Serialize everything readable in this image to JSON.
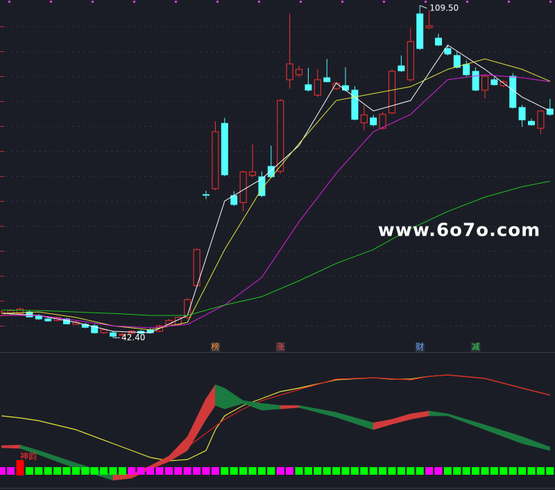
{
  "chart_data": [
    {
      "type": "candlestick",
      "ylim": [
        39.5,
        110.6
      ],
      "open": [
        46.9,
        47.3,
        47.3,
        47.6,
        46.9,
        46.2,
        45.9,
        46.2,
        45.1,
        45.1,
        44.8,
        43.4,
        43.4,
        42.9,
        43.3,
        43.7,
        44.0,
        43.7,
        45.1,
        45.1,
        46.5,
        52.9,
        71.3,
        72.5,
        85.7,
        71.1,
        69.7,
        75.2,
        74.9,
        77.0,
        76.0,
        94.5,
        95.5,
        93.5,
        91.4,
        94.9,
        92.7,
        93.3,
        92.4,
        85.8,
        86.8,
        84.7,
        87.8,
        97.3,
        94.5,
        107.8,
        105.0,
        102.9,
        100.8,
        99.4,
        97.6,
        96.2,
        92.4,
        94.5,
        93.3,
        95.2,
        88.9,
        86.1,
        84.7,
        88.6
      ],
      "high": [
        47.9,
        48.2,
        48.5,
        47.9,
        47.2,
        46.5,
        46.6,
        46.4,
        45.9,
        45.4,
        45.2,
        44.2,
        43.8,
        43.4,
        43.9,
        44.0,
        44.3,
        45.0,
        46.2,
        46.6,
        50.4,
        60.4,
        72.1,
        86.1,
        86.8,
        72.0,
        76.1,
        81.5,
        76.0,
        81.2,
        90.6,
        107.8,
        97.3,
        96.9,
        96.6,
        98.7,
        94.1,
        97.0,
        93.2,
        89.3,
        87.4,
        88.0,
        96.6,
        99.4,
        105.0,
        109.5,
        108.5,
        103.8,
        101.5,
        100.2,
        98.4,
        97.0,
        95.4,
        95.0,
        94.4,
        95.8,
        89.4,
        86.6,
        88.4,
        90.6
      ],
      "low": [
        46.6,
        47.0,
        47.0,
        46.5,
        46.0,
        45.6,
        45.7,
        45.1,
        45.0,
        44.3,
        43.2,
        43.2,
        42.4,
        42.7,
        43.0,
        43.1,
        43.2,
        43.5,
        44.9,
        44.9,
        46.2,
        52.6,
        70.4,
        72.2,
        75.0,
        69.0,
        67.9,
        74.8,
        70.8,
        74.6,
        75.5,
        92.7,
        95.0,
        92.1,
        91.0,
        94.0,
        92.4,
        92.2,
        86.3,
        84.3,
        85.1,
        84.4,
        87.5,
        96.1,
        94.1,
        100.5,
        104.8,
        101.3,
        99.4,
        96.8,
        95.2,
        92.2,
        90.7,
        93.3,
        93.0,
        88.7,
        85.0,
        85.2,
        83.6,
        87.2
      ],
      "close": [
        47.6,
        47.9,
        48.2,
        46.6,
        46.2,
        45.8,
        46.5,
        45.2,
        45.5,
        44.5,
        43.4,
        44.0,
        42.7,
        43.1,
        43.7,
        43.3,
        43.4,
        44.8,
        45.9,
        46.5,
        50.1,
        60.2,
        71.2,
        84.0,
        75.3,
        69.3,
        75.9,
        75.9,
        71.1,
        74.9,
        90.3,
        97.7,
        96.6,
        92.4,
        94.5,
        94.1,
        93.8,
        92.4,
        86.5,
        87.4,
        85.4,
        87.5,
        96.2,
        96.3,
        102.2,
        100.8,
        105.4,
        101.5,
        99.7,
        97.0,
        95.5,
        92.4,
        95.2,
        93.5,
        94.1,
        88.9,
        86.4,
        85.4,
        88.2,
        87.5
      ],
      "up_color": "#ff3232",
      "down_color": "#54ffff",
      "series": [
        {
          "color": "#ffffff",
          "x": [
            0,
            4,
            8,
            12,
            16,
            20,
            24,
            28,
            32,
            36,
            40,
            44,
            48,
            52,
            56,
            59
          ],
          "values": [
            47.3,
            46.9,
            45.5,
            43.7,
            43.4,
            46.9,
            70.0,
            74.5,
            81.2,
            93.8,
            88.2,
            90.3,
            101.5,
            96.6,
            91.0,
            88.2
          ]
        },
        {
          "color": "#e8e83a",
          "x": [
            0,
            4,
            8,
            12,
            16,
            20,
            24,
            28,
            32,
            36,
            40,
            44,
            48,
            52,
            56,
            59
          ],
          "values": [
            47.3,
            47.6,
            46.5,
            44.8,
            44.0,
            45.5,
            60.2,
            72.5,
            81.6,
            90.3,
            91.7,
            93.1,
            96.6,
            98.7,
            96.6,
            94.2
          ]
        },
        {
          "color": "#e020e0",
          "x": [
            0,
            4,
            8,
            12,
            16,
            20,
            24,
            28,
            32,
            36,
            40,
            44,
            48,
            52,
            56,
            59
          ],
          "values": [
            46.9,
            46.9,
            45.9,
            44.8,
            44.4,
            45.1,
            49.0,
            54.6,
            65.8,
            75.6,
            84.0,
            87.5,
            94.5,
            95.5,
            94.9,
            94.1
          ]
        },
        {
          "color": "#1ec81e",
          "x": [
            0,
            4,
            8,
            12,
            16,
            20,
            24,
            28,
            32,
            36,
            40,
            44,
            48,
            52,
            56,
            59
          ],
          "values": [
            48.0,
            47.9,
            47.6,
            47.3,
            46.9,
            46.9,
            49.0,
            50.7,
            53.9,
            57.4,
            60.2,
            64.4,
            67.9,
            70.8,
            72.9,
            74.0
          ]
        }
      ],
      "max_label": "109.50",
      "min_label": "42.40",
      "events": [
        {
          "index": 23,
          "label": "榜",
          "color": "#ff9933"
        },
        {
          "index": 30,
          "label": "涨",
          "color": "#ff5050"
        },
        {
          "index": 45,
          "label": "财",
          "color": "#66aaff"
        },
        {
          "index": 51,
          "label": "减",
          "color": "#33dd55"
        }
      ],
      "watermark": "www.6o7o.com"
    },
    {
      "type": "band",
      "ylim": [
        0,
        190
      ],
      "x": [
        0,
        2,
        4,
        8,
        12,
        14,
        16,
        18,
        20,
        22,
        23,
        24,
        26,
        28,
        30,
        32,
        36,
        40,
        42,
        44,
        46,
        48,
        52,
        56,
        59
      ],
      "upper": [
        59,
        60,
        52,
        34,
        17,
        18,
        30,
        44,
        72,
        127,
        147,
        142,
        124,
        120,
        117,
        117,
        107,
        92,
        97,
        105,
        109,
        105,
        89,
        72,
        57
      ],
      "lower": [
        56,
        55,
        46,
        26,
        9,
        12,
        25,
        36,
        52,
        97,
        117,
        112,
        120,
        110,
        112,
        114,
        100,
        82,
        90,
        97,
        102,
        102,
        82,
        62,
        52
      ],
      "rise_color": "#d23a3a",
      "fall_color": "#1b7a40",
      "series": [
        {
          "color": "#e8e83a",
          "x": [
            0,
            2,
            4,
            8,
            12,
            14,
            16,
            18,
            20,
            22,
            23,
            24,
            26,
            28,
            30,
            32,
            36,
            40,
            42,
            44,
            46,
            48,
            52,
            56,
            59
          ],
          "values": [
            102,
            99,
            95,
            82,
            62,
            52,
            42,
            37,
            39,
            52,
            82,
            102,
            117,
            127,
            137,
            142,
            154,
            157,
            155,
            155,
            159,
            161,
            156,
            142,
            132
          ]
        },
        {
          "color": "#e02020",
          "x": [
            13,
            16,
            18,
            20,
            22,
            24,
            26,
            28,
            30,
            32,
            36,
            40,
            44,
            46,
            48,
            52,
            56,
            59
          ],
          "values": [
            12,
            27,
            42,
            57,
            77,
            97,
            112,
            124,
            132,
            140,
            155,
            157,
            154,
            159,
            161,
            156,
            142,
            132
          ]
        }
      ],
      "signal_colors": [
        "#ff00ff",
        "#ff00ff",
        "#ff0000",
        "#00ff00",
        "#00ff00",
        "#00ff00",
        "#00ff00",
        "#00ff00",
        "#00ff00",
        "#00ff00",
        "#00ff00",
        "#00ff00",
        "#00ff00",
        "#00ff00",
        "#ff00ff",
        "#ff00ff",
        "#ff00ff",
        "#ff00ff",
        "#ff00ff",
        "#ff00ff",
        "#ff00ff",
        "#ff00ff",
        "#ff00ff",
        "#ff00ff",
        "#00ff00",
        "#00ff00",
        "#00ff00",
        "#00ff00",
        "#00ff00",
        "#00ff00",
        "#ff00ff",
        "#ff00ff",
        "#00ff00",
        "#00ff00",
        "#00ff00",
        "#00ff00",
        "#00ff00",
        "#00ff00",
        "#00ff00",
        "#00ff00",
        "#00ff00",
        "#00ff00",
        "#00ff00",
        "#00ff00",
        "#00ff00",
        "#00ff00",
        "#ff00ff",
        "#ff00ff",
        "#00ff00",
        "#00ff00",
        "#00ff00",
        "#00ff00",
        "#00ff00",
        "#00ff00",
        "#00ff00",
        "#00ff00",
        "#00ff00",
        "#00ff00",
        "#00ff00",
        "#00ff00"
      ],
      "signal_label": {
        "index": 2,
        "text": "神韵"
      }
    }
  ]
}
